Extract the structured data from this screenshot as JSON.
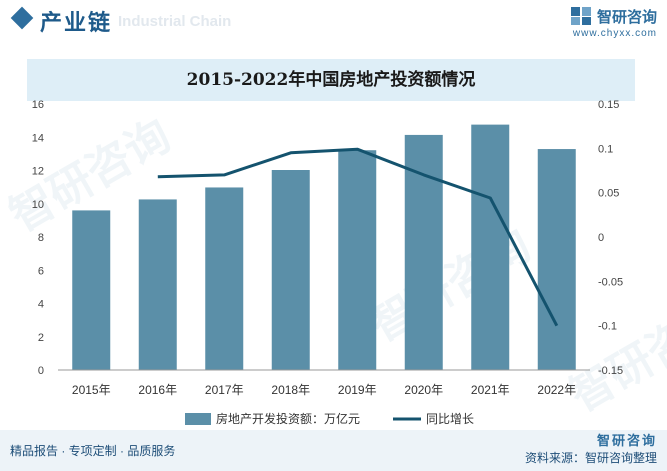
{
  "header": {
    "section_title": "产业链",
    "watermark_en": "Industrial Chain",
    "logo_name": "智研咨询",
    "logo_url": "www.chyxx.com"
  },
  "watermarks": [
    "智研咨询",
    "智研咨询",
    "智研咨询"
  ],
  "chart_data": {
    "type": "bar+line",
    "title": "2015-2022年中国房地产投资额情况",
    "categories": [
      "2015年",
      "2016年",
      "2017年",
      "2018年",
      "2019年",
      "2020年",
      "2021年",
      "2022年"
    ],
    "series": [
      {
        "name": "房地产开发投资额：万亿元",
        "type": "bar",
        "axis": "left",
        "color": "#5b8fa8",
        "values": [
          9.6,
          10.26,
          10.98,
          12.03,
          13.22,
          14.14,
          14.76,
          13.29
        ]
      },
      {
        "name": "同比增长",
        "type": "line",
        "axis": "right",
        "color": "#14536e",
        "values": [
          null,
          0.068,
          0.07,
          0.095,
          0.099,
          0.07,
          0.044,
          -0.1
        ]
      }
    ],
    "y_left": {
      "min": 0,
      "max": 16,
      "ticks": [
        "0",
        "2",
        "4",
        "6",
        "8",
        "10",
        "12",
        "14",
        "16"
      ]
    },
    "y_right": {
      "min": -0.15,
      "max": 0.15,
      "ticks": [
        "-0.15",
        "-0.1",
        "-0.05",
        "0",
        "0.05",
        "0.1",
        "0.15"
      ]
    },
    "legend_position": "bottom-center"
  },
  "footer": {
    "tagline": "精品报告 · 专项定制 · 品质服务",
    "brand": "智研咨询",
    "source_label": "资料来源：智研咨询整理"
  }
}
